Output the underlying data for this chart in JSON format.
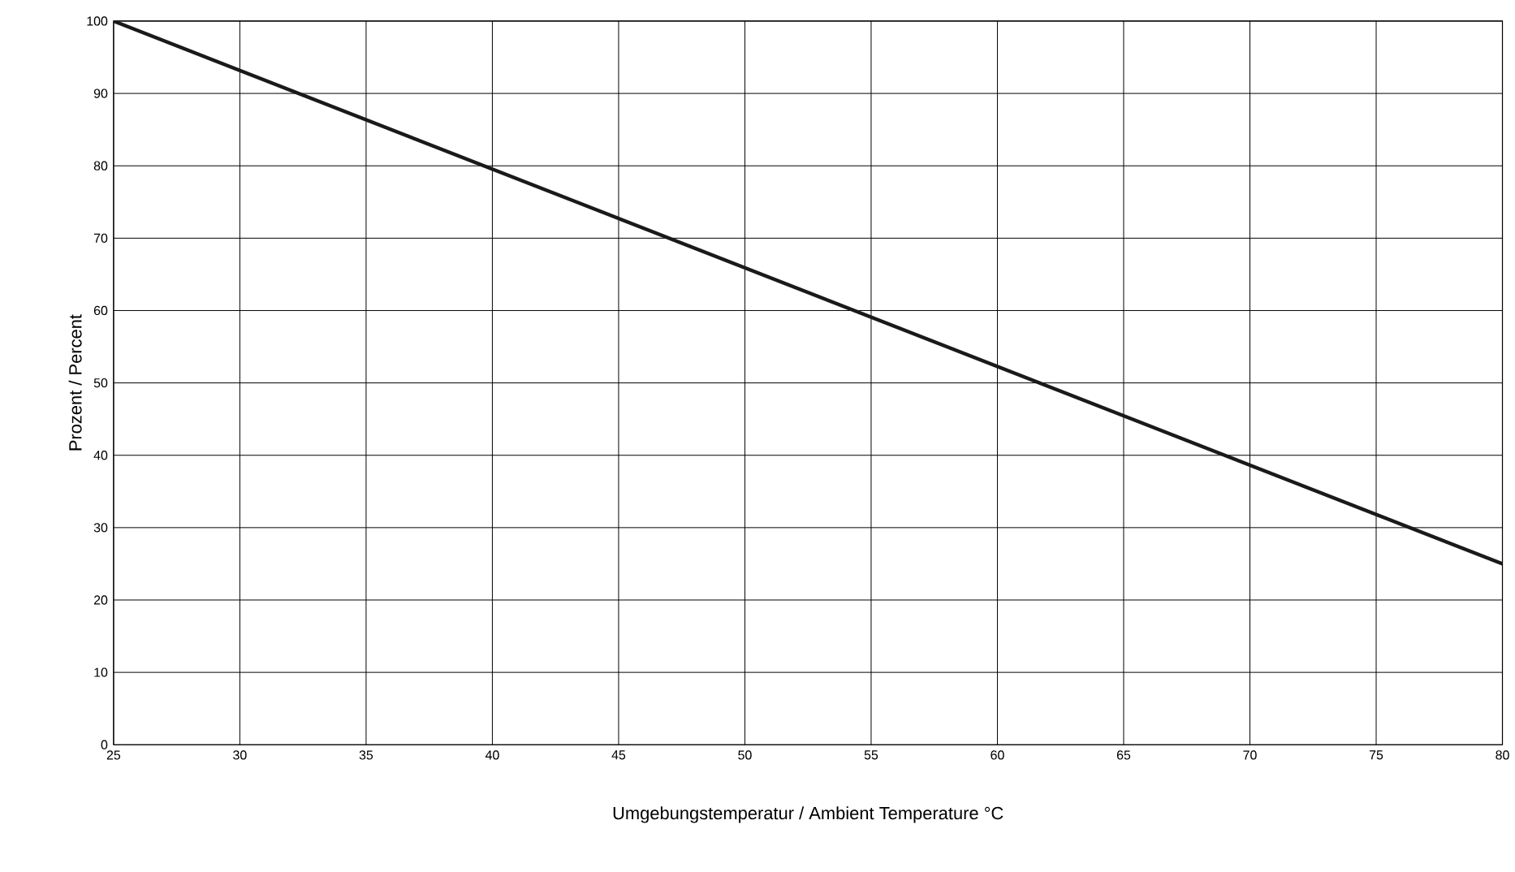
{
  "chart_data": {
    "type": "line",
    "xlabel": "Umgebungstemperatur / Ambient Temperature °C",
    "ylabel": "Prozent / Percent",
    "x": [
      25,
      80
    ],
    "series": [
      {
        "color": "#1a1a1a",
        "values": [
          100,
          25
        ]
      }
    ],
    "xlim": [
      25,
      80
    ],
    "ylim": [
      0,
      100
    ],
    "xticks": [
      25,
      30,
      35,
      40,
      45,
      50,
      55,
      60,
      65,
      70,
      75,
      80
    ],
    "yticks": [
      0,
      10,
      20,
      30,
      40,
      50,
      60,
      70,
      80,
      90,
      100
    ],
    "grid": true,
    "marker": "none",
    "line_style": "solid"
  }
}
